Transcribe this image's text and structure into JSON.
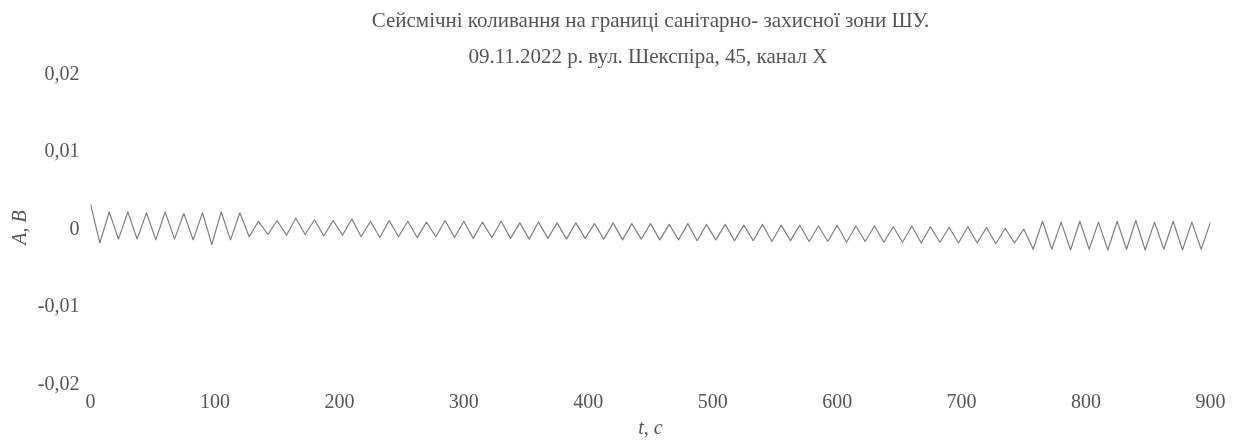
{
  "chart_data": {
    "type": "line",
    "title": "Сейсмічні коливання на границі санітарно- захисної зони ШУ.",
    "subtitle": "09.11.2022 р. вул. Шекспіра, 45,  канал X",
    "xlabel": "t, c",
    "ylabel": "A, В",
    "xlim": [
      0,
      900
    ],
    "xticks": [
      0,
      100,
      200,
      300,
      400,
      500,
      600,
      700,
      800,
      900
    ],
    "ylim": [
      -0.02,
      0.02
    ],
    "yticks": [
      {
        "value": -0.02,
        "label": "-0,02"
      },
      {
        "value": -0.01,
        "label": "-0,01"
      },
      {
        "value": 0,
        "label": "0"
      },
      {
        "value": 0.01,
        "label": "0,01"
      },
      {
        "value": 0.02,
        "label": "0,02"
      }
    ],
    "grid": false,
    "marker": "none",
    "line_style": "solid",
    "x": [
      0,
      7.5,
      15,
      22.5,
      30,
      37.5,
      45,
      52.5,
      60,
      67.5,
      75,
      82.5,
      90,
      97.5,
      105,
      112.5,
      120,
      127.5,
      135,
      142.5,
      150,
      157.5,
      165,
      172.5,
      180,
      187.5,
      195,
      202.5,
      210,
      217.5,
      225,
      232.5,
      240,
      247.5,
      255,
      262.5,
      270,
      277.5,
      285,
      292.5,
      300,
      307.5,
      315,
      322.5,
      330,
      337.5,
      345,
      352.5,
      360,
      367.5,
      375,
      382.5,
      390,
      397.5,
      405,
      412.5,
      420,
      427.5,
      435,
      442.5,
      450,
      457.5,
      465,
      472.5,
      480,
      487.5,
      495,
      502.5,
      510,
      517.5,
      525,
      532.5,
      540,
      547.5,
      555,
      562.5,
      570,
      577.5,
      585,
      592.5,
      600,
      607.5,
      615,
      622.5,
      630,
      637.5,
      645,
      652.5,
      660,
      667.5,
      675,
      682.5,
      690,
      697.5,
      705,
      712.5,
      720,
      727.5,
      735,
      742.5,
      750,
      757.5,
      765,
      772.5,
      780,
      787.5,
      795,
      802.5,
      810,
      817.5,
      825,
      832.5,
      840,
      847.5,
      855,
      862.5,
      870,
      877.5,
      885,
      892.5,
      900
    ],
    "series": [
      {
        "color": "#808080",
        "values": [
          0.003,
          -0.002,
          0.002,
          -0.0015,
          0.002,
          -0.0015,
          0.0019,
          -0.0016,
          0.002,
          -0.0015,
          0.0018,
          -0.0016,
          0.0019,
          -0.0022,
          0.002,
          -0.0016,
          0.0019,
          -0.0012,
          0.0008,
          -0.0009,
          0.0009,
          -0.001,
          0.0012,
          -0.0009,
          0.001,
          -0.0011,
          0.0009,
          -0.001,
          0.0011,
          -0.0012,
          0.0008,
          -0.0013,
          0.0009,
          -0.0012,
          0.0008,
          -0.0013,
          0.0007,
          -0.0012,
          0.0009,
          -0.0013,
          0.0008,
          -0.0014,
          0.0007,
          -0.0013,
          0.0008,
          -0.0014,
          0.0006,
          -0.0015,
          0.0007,
          -0.0014,
          0.0006,
          -0.0015,
          0.0006,
          -0.0014,
          0.0005,
          -0.0015,
          0.0006,
          -0.0016,
          0.0005,
          -0.0015,
          0.0005,
          -0.0016,
          0.0004,
          -0.0016,
          0.0005,
          -0.0017,
          0.0004,
          -0.0016,
          0.0004,
          -0.0017,
          0.0003,
          -0.0017,
          0.0004,
          -0.0018,
          0.0003,
          -0.0017,
          0.0003,
          -0.0018,
          0.0002,
          -0.0018,
          0.0003,
          -0.0019,
          0.0002,
          -0.0018,
          0.0002,
          -0.0019,
          0.0001,
          -0.0019,
          0.0002,
          -0.002,
          0.0001,
          -0.0019,
          0,
          -0.002,
          0.0001,
          -0.002,
          0,
          -0.0021,
          -0.0001,
          -0.002,
          -0.0002,
          -0.0028,
          0.0008,
          -0.0028,
          0.0007,
          -0.0029,
          0.0008,
          -0.0028,
          0.0007,
          -0.0029,
          0.0008,
          -0.0028,
          0.0009,
          -0.0029,
          0.0007,
          -0.0028,
          0.0008,
          -0.0029,
          0.0007,
          -0.0028,
          0.0007
        ]
      }
    ]
  }
}
